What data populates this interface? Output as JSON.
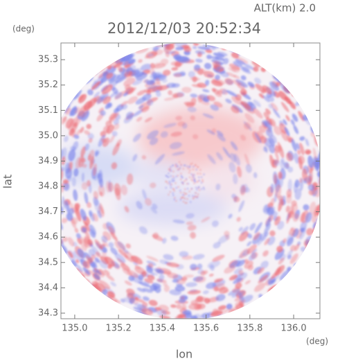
{
  "chart_data": {
    "type": "radar-image",
    "title": "2012/12/03 20:52:34",
    "altitude_label": "ALT(km) 2.0",
    "y_unit": "(deg)",
    "x_unit": "(deg)",
    "xlabel": "lon",
    "ylabel": "lat",
    "xlim": [
      134.937,
      136.12
    ],
    "ylim": [
      34.278,
      35.366
    ],
    "xticks": [
      {
        "value": 135,
        "label": "135.0"
      },
      135.2,
      135.4,
      135.6,
      135.8,
      {
        "value": 136,
        "label": "136.0"
      }
    ],
    "yticks": [
      34.3,
      34.4,
      34.5,
      34.6,
      34.7,
      34.8,
      34.9,
      {
        "value": 35,
        "label": "35.0"
      },
      35.1,
      35.2,
      35.3
    ]
  }
}
